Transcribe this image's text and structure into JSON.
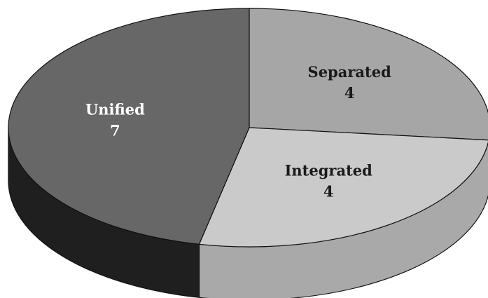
{
  "chart_data": {
    "type": "pie",
    "categories": [
      "Separated",
      "Integrated",
      "Unified"
    ],
    "values": [
      4,
      4,
      7
    ],
    "colors": [
      "#a6a6a6",
      "#cacaca",
      "#676767"
    ],
    "side_colors": [
      "#9a9a9a",
      "#a9a9a9",
      "#1f1f1f"
    ],
    "label_colors": [
      "#1a1a1a",
      "#1a1a1a",
      "#ffffff"
    ]
  }
}
